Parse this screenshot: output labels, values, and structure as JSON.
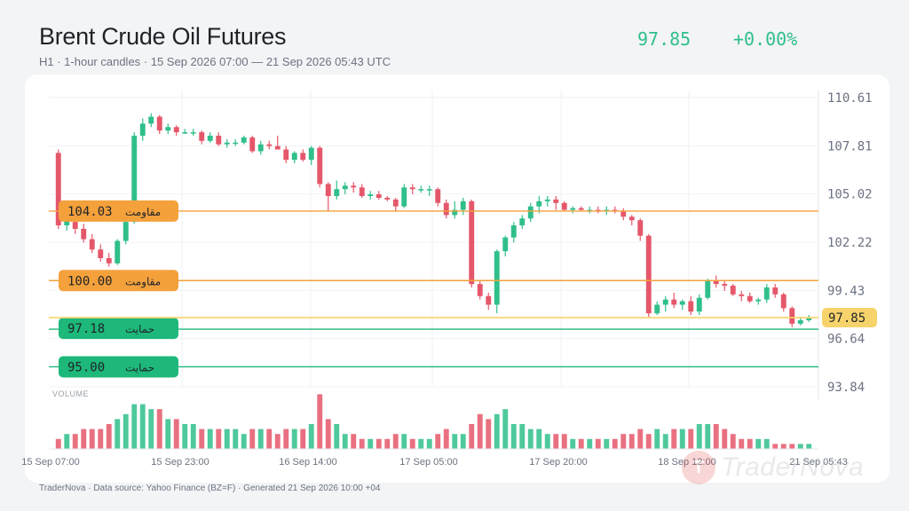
{
  "header": {
    "title": "Brent Crude Oil Futures",
    "subtitle": "H1 · 1-hour candles · 15 Sep 2026 07:00 — 21 Sep 2026 05:43 UTC",
    "price": "97.85",
    "change": "+0.00%"
  },
  "footer": "TraderNova · Data source: Yahoo Finance (BZ=F) · Generated 21 Sep 2026 10:00 +04",
  "watermark": "TraderNova",
  "colors": {
    "up": "#2fbf8a",
    "down": "#e5576a",
    "resistance": "#f4a13c",
    "support": "#1db87a",
    "last": "#f7d36b"
  },
  "chart_data": {
    "type": "candlestick",
    "title": "Brent Crude Oil Futures",
    "ylim": [
      93.84,
      110.61
    ],
    "y_ticks": [
      "110.61",
      "107.81",
      "105.02",
      "102.22",
      "99.43",
      "96.64",
      "93.84"
    ],
    "x_ticks": [
      "15 Sep 07:00",
      "15 Sep 23:00",
      "16 Sep 14:00",
      "17 Sep 05:00",
      "17 Sep 20:00",
      "18 Sep 12:00",
      "21 Sep 05:43"
    ],
    "volume_label": "VOLUME",
    "last_price": {
      "value": 97.85,
      "label": "97.85"
    },
    "levels": [
      {
        "type": "resistance",
        "value": 104.03,
        "label": "104.03",
        "tag": "مقاومت"
      },
      {
        "type": "resistance",
        "value": 100.0,
        "label": "100.00",
        "tag": "مقاومت"
      },
      {
        "type": "support",
        "value": 97.18,
        "label": "97.18",
        "tag": "حمایت"
      },
      {
        "type": "support",
        "value": 95.0,
        "label": "95.00",
        "tag": "حمایت"
      }
    ],
    "candles": [
      {
        "o": 107.4,
        "h": 107.6,
        "l": 103.0,
        "c": 103.2,
        "v": 2
      },
      {
        "o": 103.2,
        "h": 103.8,
        "l": 102.9,
        "c": 103.5,
        "v": 3
      },
      {
        "o": 103.4,
        "h": 103.6,
        "l": 102.7,
        "c": 103.0,
        "v": 3
      },
      {
        "o": 103.0,
        "h": 103.3,
        "l": 102.2,
        "c": 102.4,
        "v": 4
      },
      {
        "o": 102.4,
        "h": 102.7,
        "l": 101.6,
        "c": 101.8,
        "v": 4
      },
      {
        "o": 101.8,
        "h": 102.1,
        "l": 101.1,
        "c": 101.3,
        "v": 4
      },
      {
        "o": 101.3,
        "h": 101.6,
        "l": 100.8,
        "c": 101.0,
        "v": 5
      },
      {
        "o": 101.0,
        "h": 102.4,
        "l": 100.9,
        "c": 102.3,
        "v": 6
      },
      {
        "o": 102.3,
        "h": 103.6,
        "l": 102.1,
        "c": 103.4,
        "v": 7
      },
      {
        "o": 103.4,
        "h": 108.6,
        "l": 103.3,
        "c": 108.4,
        "v": 9
      },
      {
        "o": 108.4,
        "h": 109.4,
        "l": 108.1,
        "c": 109.1,
        "v": 9
      },
      {
        "o": 109.1,
        "h": 109.7,
        "l": 108.9,
        "c": 109.5,
        "v": 8
      },
      {
        "o": 109.5,
        "h": 109.6,
        "l": 108.5,
        "c": 108.7,
        "v": 8
      },
      {
        "o": 108.7,
        "h": 109.1,
        "l": 108.5,
        "c": 108.9,
        "v": 6
      },
      {
        "o": 108.9,
        "h": 109.0,
        "l": 108.4,
        "c": 108.6,
        "v": 6
      },
      {
        "o": 108.6,
        "h": 108.8,
        "l": 108.5,
        "c": 108.6,
        "v": 5
      },
      {
        "o": 108.6,
        "h": 108.8,
        "l": 108.4,
        "c": 108.6,
        "v": 5
      },
      {
        "o": 108.6,
        "h": 108.7,
        "l": 107.9,
        "c": 108.1,
        "v": 4
      },
      {
        "o": 108.1,
        "h": 108.6,
        "l": 108.0,
        "c": 108.4,
        "v": 4
      },
      {
        "o": 108.4,
        "h": 108.6,
        "l": 107.8,
        "c": 107.9,
        "v": 4
      },
      {
        "o": 107.9,
        "h": 108.2,
        "l": 107.7,
        "c": 108.0,
        "v": 4
      },
      {
        "o": 108.0,
        "h": 108.2,
        "l": 107.8,
        "c": 108.0,
        "v": 4
      },
      {
        "o": 108.0,
        "h": 108.4,
        "l": 107.9,
        "c": 108.3,
        "v": 3
      },
      {
        "o": 108.3,
        "h": 108.4,
        "l": 107.4,
        "c": 107.5,
        "v": 4
      },
      {
        "o": 107.5,
        "h": 108.1,
        "l": 107.3,
        "c": 107.9,
        "v": 4
      },
      {
        "o": 107.9,
        "h": 108.1,
        "l": 107.6,
        "c": 107.8,
        "v": 4
      },
      {
        "o": 107.8,
        "h": 108.4,
        "l": 107.6,
        "c": 107.6,
        "v": 3
      },
      {
        "o": 107.6,
        "h": 107.8,
        "l": 106.8,
        "c": 107.0,
        "v": 4
      },
      {
        "o": 107.0,
        "h": 107.5,
        "l": 106.8,
        "c": 107.4,
        "v": 4
      },
      {
        "o": 107.4,
        "h": 107.6,
        "l": 106.9,
        "c": 107.0,
        "v": 4
      },
      {
        "o": 107.0,
        "h": 107.8,
        "l": 106.7,
        "c": 107.7,
        "v": 5
      },
      {
        "o": 107.7,
        "h": 107.8,
        "l": 105.4,
        "c": 105.6,
        "v": 11
      },
      {
        "o": 105.6,
        "h": 105.7,
        "l": 104.0,
        "c": 104.9,
        "v": 6
      },
      {
        "o": 104.9,
        "h": 105.8,
        "l": 104.7,
        "c": 105.3,
        "v": 5
      },
      {
        "o": 105.3,
        "h": 105.7,
        "l": 105.0,
        "c": 105.5,
        "v": 3
      },
      {
        "o": 105.5,
        "h": 105.7,
        "l": 105.1,
        "c": 105.4,
        "v": 3
      },
      {
        "o": 105.4,
        "h": 105.6,
        "l": 104.8,
        "c": 104.9,
        "v": 2
      },
      {
        "o": 104.9,
        "h": 105.2,
        "l": 104.7,
        "c": 105.0,
        "v": 2
      },
      {
        "o": 105.0,
        "h": 105.2,
        "l": 104.7,
        "c": 104.8,
        "v": 2
      },
      {
        "o": 104.8,
        "h": 104.9,
        "l": 104.6,
        "c": 104.7,
        "v": 2
      },
      {
        "o": 104.7,
        "h": 104.8,
        "l": 104.0,
        "c": 104.3,
        "v": 3
      },
      {
        "o": 104.3,
        "h": 105.6,
        "l": 104.2,
        "c": 105.4,
        "v": 3
      },
      {
        "o": 105.4,
        "h": 105.6,
        "l": 105.0,
        "c": 105.3,
        "v": 2
      },
      {
        "o": 105.3,
        "h": 105.5,
        "l": 105.1,
        "c": 105.3,
        "v": 2
      },
      {
        "o": 105.3,
        "h": 105.5,
        "l": 104.9,
        "c": 105.3,
        "v": 2
      },
      {
        "o": 105.3,
        "h": 105.4,
        "l": 104.3,
        "c": 104.5,
        "v": 3
      },
      {
        "o": 104.5,
        "h": 104.7,
        "l": 103.6,
        "c": 103.8,
        "v": 4
      },
      {
        "o": 103.8,
        "h": 104.6,
        "l": 103.6,
        "c": 104.1,
        "v": 3
      },
      {
        "o": 104.1,
        "h": 104.8,
        "l": 103.8,
        "c": 104.6,
        "v": 3
      },
      {
        "o": 104.6,
        "h": 104.7,
        "l": 99.6,
        "c": 99.8,
        "v": 5
      },
      {
        "o": 99.8,
        "h": 100.0,
        "l": 98.9,
        "c": 99.1,
        "v": 7
      },
      {
        "o": 99.1,
        "h": 99.3,
        "l": 98.3,
        "c": 98.6,
        "v": 6
      },
      {
        "o": 98.6,
        "h": 101.8,
        "l": 98.1,
        "c": 101.7,
        "v": 7
      },
      {
        "o": 101.7,
        "h": 102.6,
        "l": 101.4,
        "c": 102.5,
        "v": 8
      },
      {
        "o": 102.5,
        "h": 103.4,
        "l": 102.2,
        "c": 103.2,
        "v": 5
      },
      {
        "o": 103.2,
        "h": 103.8,
        "l": 103.0,
        "c": 103.6,
        "v": 5
      },
      {
        "o": 103.6,
        "h": 104.5,
        "l": 103.4,
        "c": 104.3,
        "v": 4
      },
      {
        "o": 104.3,
        "h": 104.9,
        "l": 103.9,
        "c": 104.6,
        "v": 4
      },
      {
        "o": 104.6,
        "h": 104.9,
        "l": 104.3,
        "c": 104.7,
        "v": 3
      },
      {
        "o": 104.7,
        "h": 104.9,
        "l": 104.1,
        "c": 104.5,
        "v": 3
      },
      {
        "o": 104.5,
        "h": 104.6,
        "l": 104.0,
        "c": 104.1,
        "v": 3
      },
      {
        "o": 104.1,
        "h": 104.3,
        "l": 103.9,
        "c": 104.2,
        "v": 2
      },
      {
        "o": 104.2,
        "h": 104.3,
        "l": 104.0,
        "c": 104.1,
        "v": 2
      },
      {
        "o": 104.1,
        "h": 104.3,
        "l": 103.9,
        "c": 104.1,
        "v": 2
      },
      {
        "o": 104.1,
        "h": 104.3,
        "l": 103.9,
        "c": 104.0,
        "v": 2
      },
      {
        "o": 104.0,
        "h": 104.3,
        "l": 103.8,
        "c": 104.1,
        "v": 2
      },
      {
        "o": 104.1,
        "h": 104.3,
        "l": 103.9,
        "c": 104.0,
        "v": 2
      },
      {
        "o": 104.0,
        "h": 104.2,
        "l": 103.5,
        "c": 103.7,
        "v": 3
      },
      {
        "o": 103.7,
        "h": 103.8,
        "l": 103.2,
        "c": 103.5,
        "v": 3
      },
      {
        "o": 103.5,
        "h": 103.6,
        "l": 102.3,
        "c": 102.6,
        "v": 4
      },
      {
        "o": 102.6,
        "h": 102.7,
        "l": 97.9,
        "c": 98.1,
        "v": 3
      },
      {
        "o": 98.1,
        "h": 98.8,
        "l": 98.0,
        "c": 98.6,
        "v": 4
      },
      {
        "o": 98.6,
        "h": 99.1,
        "l": 98.2,
        "c": 98.9,
        "v": 3
      },
      {
        "o": 98.9,
        "h": 99.3,
        "l": 98.4,
        "c": 98.6,
        "v": 4
      },
      {
        "o": 98.6,
        "h": 98.9,
        "l": 98.3,
        "c": 98.8,
        "v": 4
      },
      {
        "o": 98.8,
        "h": 99.1,
        "l": 98.0,
        "c": 98.2,
        "v": 4
      },
      {
        "o": 98.2,
        "h": 99.2,
        "l": 98.0,
        "c": 99.0,
        "v": 5
      },
      {
        "o": 99.0,
        "h": 100.1,
        "l": 98.9,
        "c": 100.0,
        "v": 5
      },
      {
        "o": 100.0,
        "h": 100.3,
        "l": 99.6,
        "c": 99.8,
        "v": 5
      },
      {
        "o": 99.8,
        "h": 100.0,
        "l": 99.4,
        "c": 99.7,
        "v": 4
      },
      {
        "o": 99.7,
        "h": 99.8,
        "l": 99.1,
        "c": 99.2,
        "v": 3
      },
      {
        "o": 99.2,
        "h": 99.4,
        "l": 98.8,
        "c": 99.1,
        "v": 2
      },
      {
        "o": 99.1,
        "h": 99.3,
        "l": 98.7,
        "c": 98.8,
        "v": 2
      },
      {
        "o": 98.8,
        "h": 99.0,
        "l": 98.6,
        "c": 98.9,
        "v": 2
      },
      {
        "o": 98.9,
        "h": 99.8,
        "l": 98.7,
        "c": 99.6,
        "v": 2
      },
      {
        "o": 99.6,
        "h": 99.8,
        "l": 99.0,
        "c": 99.2,
        "v": 1
      },
      {
        "o": 99.2,
        "h": 99.3,
        "l": 98.2,
        "c": 98.4,
        "v": 1
      },
      {
        "o": 98.4,
        "h": 98.5,
        "l": 97.3,
        "c": 97.5,
        "v": 1
      },
      {
        "o": 97.5,
        "h": 97.9,
        "l": 97.4,
        "c": 97.7,
        "v": 1
      },
      {
        "o": 97.7,
        "h": 98.0,
        "l": 97.6,
        "c": 97.85,
        "v": 1
      }
    ]
  }
}
